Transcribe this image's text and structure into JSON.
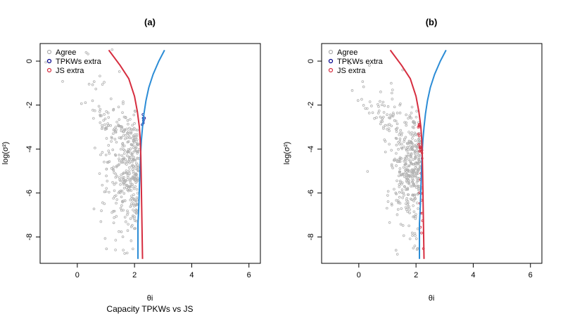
{
  "chart_data": [
    {
      "type": "scatter",
      "title": "(a)",
      "xlabel": "θi",
      "ylabel": "log(σ²)",
      "caption": "Capacity TPKWs vs JS",
      "xlim": [
        -1.3,
        6.4
      ],
      "ylim": [
        -9.2,
        0.8
      ],
      "xticks": [
        0,
        2,
        4,
        6
      ],
      "yticks": [
        0,
        -2,
        -4,
        -6,
        -8
      ],
      "grid": false,
      "legend_position": "top-left",
      "legend": [
        {
          "label": "Agree",
          "color": "#b0b0b0"
        },
        {
          "label": "TPKWs extra",
          "color": "#00008b"
        },
        {
          "label": "JS extra",
          "color": "#d62d3f"
        }
      ],
      "series": [
        {
          "name": "Agree",
          "color": "#b0b0b0",
          "kind": "points",
          "seed": 11,
          "n": 420
        },
        {
          "name": "TPKWs extra",
          "color": "#00008b",
          "kind": "points",
          "seed": 12,
          "n": 6
        },
        {
          "name": "JS extra",
          "color": "#d62d3f",
          "kind": "points",
          "seed": 13,
          "n": 0
        },
        {
          "color": "#2b8cd6",
          "kind": "line",
          "points": [
            [
              3.05,
              0.5
            ],
            [
              2.85,
              0.0
            ],
            [
              2.65,
              -0.6
            ],
            [
              2.5,
              -1.2
            ],
            [
              2.4,
              -1.8
            ],
            [
              2.33,
              -2.4
            ],
            [
              2.28,
              -3.0
            ],
            [
              2.24,
              -3.6
            ],
            [
              2.21,
              -4.3
            ],
            [
              2.19,
              -5.0
            ],
            [
              2.17,
              -5.8
            ],
            [
              2.15,
              -6.6
            ],
            [
              2.12,
              -7.4
            ],
            [
              2.12,
              -9.0
            ]
          ]
        },
        {
          "color": "#d62d3f",
          "kind": "line",
          "points": [
            [
              1.1,
              0.5
            ],
            [
              1.5,
              -0.2
            ],
            [
              1.8,
              -0.8
            ],
            [
              2.0,
              -1.6
            ],
            [
              2.1,
              -2.3
            ],
            [
              2.17,
              -3.0
            ],
            [
              2.2,
              -3.6
            ],
            [
              2.22,
              -4.3
            ],
            [
              2.23,
              -5.0
            ],
            [
              2.24,
              -5.8
            ],
            [
              2.25,
              -6.6
            ],
            [
              2.26,
              -7.4
            ],
            [
              2.28,
              -9.0
            ]
          ]
        }
      ]
    },
    {
      "type": "scatter",
      "title": "(b)",
      "xlabel": "θi",
      "ylabel": "log(σ²)",
      "xlim": [
        -1.3,
        6.4
      ],
      "ylim": [
        -9.2,
        0.8
      ],
      "xticks": [
        0,
        2,
        4,
        6
      ],
      "yticks": [
        0,
        -2,
        -4,
        -6,
        -8
      ],
      "grid": false,
      "legend_position": "top-left",
      "legend": [
        {
          "label": "Agree",
          "color": "#b0b0b0"
        },
        {
          "label": "TPKWs extra",
          "color": "#00008b"
        },
        {
          "label": "JS extra",
          "color": "#d62d3f"
        }
      ],
      "series": [
        {
          "name": "Agree",
          "color": "#b0b0b0",
          "kind": "points",
          "seed": 21,
          "n": 420
        },
        {
          "name": "TPKWs extra",
          "color": "#00008b",
          "kind": "points",
          "seed": 22,
          "n": 0
        },
        {
          "name": "JS extra",
          "color": "#d62d3f",
          "kind": "points",
          "seed": 23,
          "n": 30
        },
        {
          "color": "#2b8cd6",
          "kind": "line",
          "points": [
            [
              3.05,
              0.5
            ],
            [
              2.85,
              0.0
            ],
            [
              2.65,
              -0.6
            ],
            [
              2.5,
              -1.2
            ],
            [
              2.4,
              -1.8
            ],
            [
              2.33,
              -2.4
            ],
            [
              2.28,
              -3.0
            ],
            [
              2.24,
              -3.6
            ],
            [
              2.21,
              -4.3
            ],
            [
              2.19,
              -5.0
            ],
            [
              2.17,
              -5.8
            ],
            [
              2.15,
              -6.6
            ],
            [
              2.12,
              -7.4
            ],
            [
              2.12,
              -9.0
            ]
          ]
        },
        {
          "color": "#d62d3f",
          "kind": "line",
          "points": [
            [
              1.1,
              0.5
            ],
            [
              1.5,
              -0.2
            ],
            [
              1.8,
              -0.8
            ],
            [
              2.0,
              -1.6
            ],
            [
              2.1,
              -2.3
            ],
            [
              2.17,
              -3.0
            ],
            [
              2.2,
              -3.6
            ],
            [
              2.22,
              -4.3
            ],
            [
              2.23,
              -5.0
            ],
            [
              2.24,
              -5.8
            ],
            [
              2.25,
              -6.6
            ],
            [
              2.26,
              -7.4
            ],
            [
              2.28,
              -9.0
            ]
          ]
        }
      ]
    }
  ]
}
